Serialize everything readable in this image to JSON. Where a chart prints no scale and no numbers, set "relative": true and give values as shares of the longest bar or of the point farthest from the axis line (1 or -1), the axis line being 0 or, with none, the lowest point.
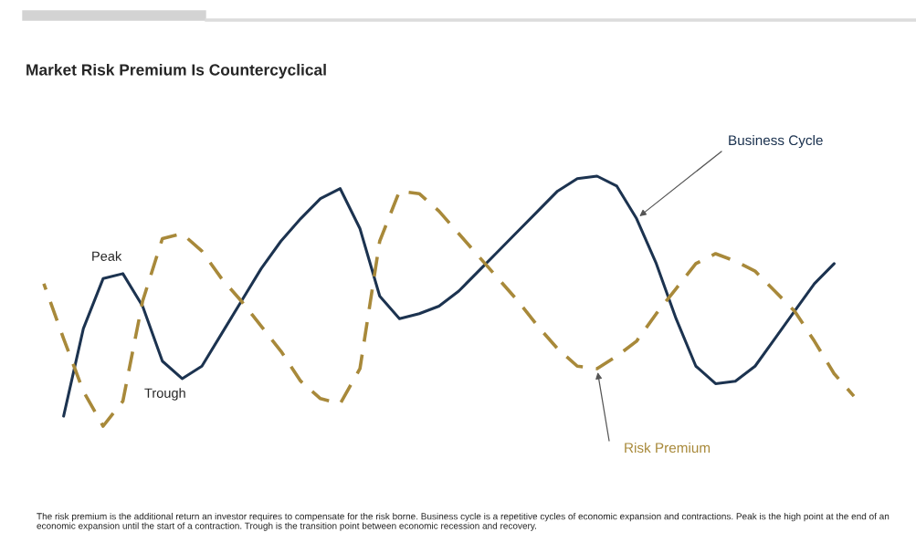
{
  "chart_data": {
    "type": "line",
    "relative": true,
    "title": "Market Risk Premium Is Countercyclical",
    "categories": [
      null,
      null,
      null,
      null,
      null,
      null,
      null,
      null,
      null,
      null,
      null,
      null,
      null,
      null,
      null,
      null,
      null,
      null,
      null,
      null,
      null,
      null,
      null,
      null,
      null,
      null,
      null,
      null,
      null,
      null,
      null,
      null,
      null,
      null,
      null,
      null,
      null,
      null,
      null,
      null,
      null,
      null
    ],
    "series": [
      {
        "name": "Business Cycle",
        "color": "#1c3350",
        "line_style": "solid",
        "values": [
          null,
          0.04,
          0.39,
          0.59,
          0.61,
          0.48,
          0.26,
          0.19,
          0.24,
          0.37,
          0.5,
          0.63,
          0.74,
          0.83,
          0.91,
          0.95,
          0.79,
          0.52,
          0.43,
          0.45,
          0.48,
          0.54,
          0.62,
          0.7,
          0.78,
          0.86,
          0.94,
          0.99,
          1.0,
          0.96,
          0.83,
          0.65,
          0.43,
          0.24,
          0.17,
          0.18,
          0.24,
          0.35,
          0.46,
          0.57,
          0.65,
          null
        ]
      },
      {
        "name": "Risk Premium",
        "color": "#a8893a",
        "line_style": "dashed",
        "values": [
          0.57,
          0.35,
          0.14,
          0.0,
          0.1,
          0.5,
          0.75,
          0.77,
          0.7,
          0.59,
          0.5,
          0.4,
          0.3,
          0.18,
          0.11,
          0.09,
          0.23,
          0.74,
          0.94,
          0.93,
          0.86,
          0.77,
          0.68,
          0.59,
          0.5,
          0.4,
          0.31,
          0.24,
          0.23,
          0.28,
          0.34,
          0.45,
          0.55,
          0.65,
          0.69,
          0.66,
          0.62,
          0.54,
          0.46,
          0.34,
          0.21,
          0.12
        ]
      }
    ],
    "annotations": [
      "Peak",
      "Trough",
      "The risk premium is the additional return an investor requires to compensate for the risk borne. Business cycle is a repetitive cycles of economic expansion and contractions. Peak is the high point at the end of an economic expansion until the start of a contraction. Trough is the transition point between economic recession and recovery."
    ],
    "legend": false,
    "marker": "none",
    "grid": false
  }
}
